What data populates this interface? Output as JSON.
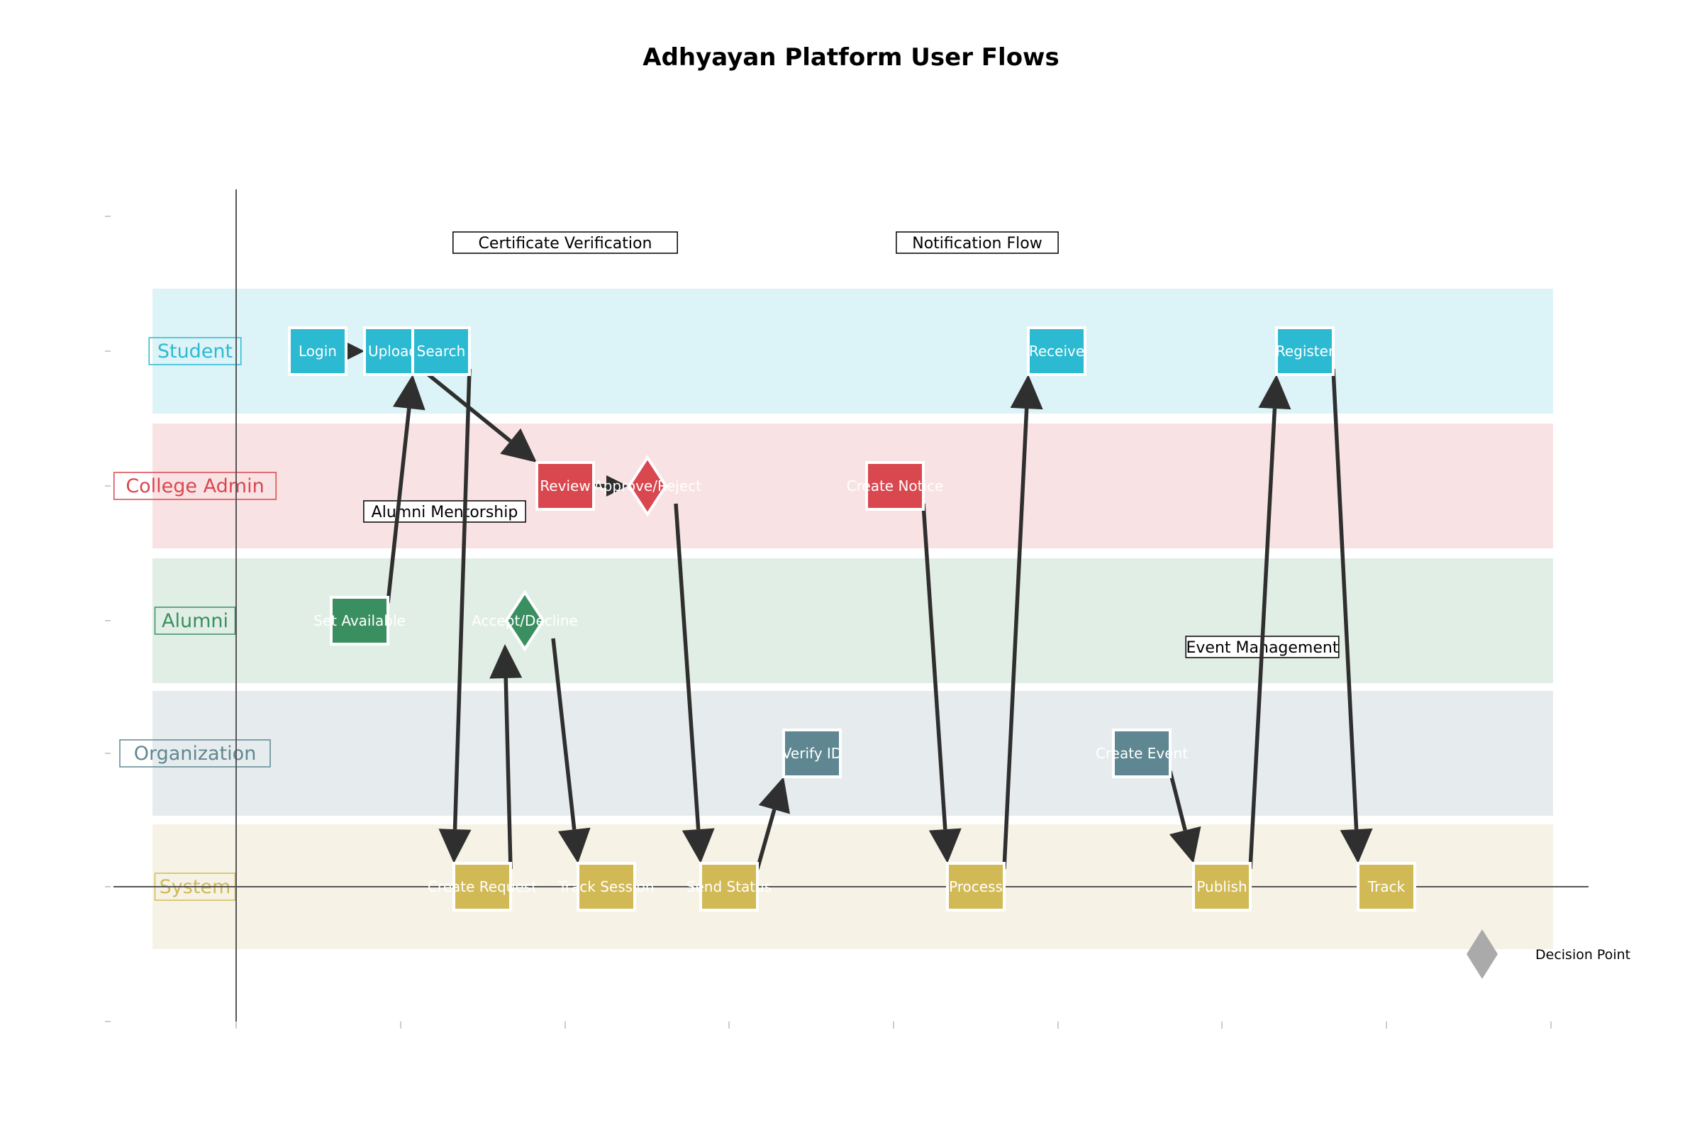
{
  "title": "Adhyayan Platform User Flows",
  "lanes": [
    {
      "id": "student",
      "label": "Student",
      "color": "#2bbad2",
      "bg": "#dcf3f7"
    },
    {
      "id": "admin",
      "label": "College Admin",
      "color": "#d9474f",
      "bg": "#f9e2e3"
    },
    {
      "id": "alumni",
      "label": "Alumni",
      "color": "#3a8f61",
      "bg": "#e1eee5"
    },
    {
      "id": "org",
      "label": "Organization",
      "color": "#5f8791",
      "bg": "#e6ecee"
    },
    {
      "id": "system",
      "label": "System",
      "color": "#d1b955",
      "bg": "#f6f3e6"
    }
  ],
  "flow_labels": [
    "Certificate Verification",
    "Notification Flow",
    "Alumni Mentorship",
    "Event Management"
  ],
  "nodes": [
    {
      "id": "login",
      "label": "Login",
      "lane": "student",
      "shape": "box"
    },
    {
      "id": "upload",
      "label": "Upload",
      "lane": "student",
      "shape": "box"
    },
    {
      "id": "search",
      "label": "Search",
      "lane": "student",
      "shape": "box"
    },
    {
      "id": "receive",
      "label": "Receive",
      "lane": "student",
      "shape": "box"
    },
    {
      "id": "register",
      "label": "Register",
      "lane": "student",
      "shape": "box"
    },
    {
      "id": "review",
      "label": "Review",
      "lane": "admin",
      "shape": "box"
    },
    {
      "id": "approve",
      "label": "Approve/Reject",
      "lane": "admin",
      "shape": "diamond"
    },
    {
      "id": "notice",
      "label": "Create Notice",
      "lane": "admin",
      "shape": "box"
    },
    {
      "id": "setavail",
      "label": "Set Available",
      "lane": "alumni",
      "shape": "box"
    },
    {
      "id": "accept",
      "label": "Accept/Decline",
      "lane": "alumni",
      "shape": "diamond"
    },
    {
      "id": "verify",
      "label": "Verify ID",
      "lane": "org",
      "shape": "box"
    },
    {
      "id": "event",
      "label": "Create Event",
      "lane": "org",
      "shape": "box"
    },
    {
      "id": "request",
      "label": "Create Request",
      "lane": "system",
      "shape": "box"
    },
    {
      "id": "track_s",
      "label": "Track Session",
      "lane": "system",
      "shape": "box"
    },
    {
      "id": "status",
      "label": "Send Status",
      "lane": "system",
      "shape": "box"
    },
    {
      "id": "process",
      "label": "Process",
      "lane": "system",
      "shape": "box"
    },
    {
      "id": "publish",
      "label": "Publish",
      "lane": "system",
      "shape": "box"
    },
    {
      "id": "track",
      "label": "Track",
      "lane": "system",
      "shape": "box"
    }
  ],
  "edges": [
    [
      "login",
      "upload"
    ],
    [
      "upload",
      "review"
    ],
    [
      "review",
      "approve"
    ],
    [
      "approve",
      "status"
    ],
    [
      "status",
      "verify"
    ],
    [
      "setavail",
      "search"
    ],
    [
      "search",
      "request"
    ],
    [
      "request",
      "accept"
    ],
    [
      "accept",
      "track_s"
    ],
    [
      "notice",
      "process"
    ],
    [
      "process",
      "receive"
    ],
    [
      "event",
      "publish"
    ],
    [
      "publish",
      "register"
    ],
    [
      "register",
      "track"
    ]
  ],
  "legend": {
    "label": "Decision Point",
    "color": "#aaaaaa"
  },
  "colors": {
    "edge": "#2f2f2f",
    "axis": "#555555"
  }
}
